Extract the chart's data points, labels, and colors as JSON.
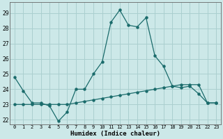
{
  "xlabel": "Humidex (Indice chaleur)",
  "ylabel": "",
  "background_color": "#cce8e8",
  "grid_color": "#aacfcf",
  "line_color": "#1a6b6b",
  "xlim": [
    -0.5,
    23.5
  ],
  "ylim": [
    21.7,
    29.7
  ],
  "yticks": [
    22,
    23,
    24,
    25,
    26,
    27,
    28,
    29
  ],
  "xticks": [
    0,
    1,
    2,
    3,
    4,
    5,
    6,
    7,
    8,
    9,
    10,
    11,
    12,
    13,
    14,
    15,
    16,
    17,
    18,
    19,
    20,
    21,
    22,
    23
  ],
  "x": [
    0,
    1,
    2,
    3,
    4,
    5,
    6,
    7,
    8,
    9,
    10,
    11,
    12,
    13,
    14,
    15,
    16,
    17,
    18,
    19,
    20,
    21,
    22,
    23
  ],
  "line1_y": [
    24.8,
    23.9,
    23.1,
    23.1,
    22.9,
    21.9,
    22.5,
    24.0,
    24.0,
    25.0,
    25.8,
    28.4,
    29.2,
    28.2,
    28.1,
    28.7,
    26.2,
    25.5,
    24.2,
    24.1,
    24.2,
    23.7,
    23.1,
    23.1
  ],
  "line2_y": [
    23.0,
    23.0,
    23.0,
    23.0,
    23.0,
    23.0,
    23.0,
    23.1,
    23.2,
    23.3,
    23.4,
    23.5,
    23.6,
    23.7,
    23.8,
    23.9,
    24.0,
    24.1,
    24.2,
    24.3,
    24.3,
    24.3,
    23.1,
    23.1
  ]
}
